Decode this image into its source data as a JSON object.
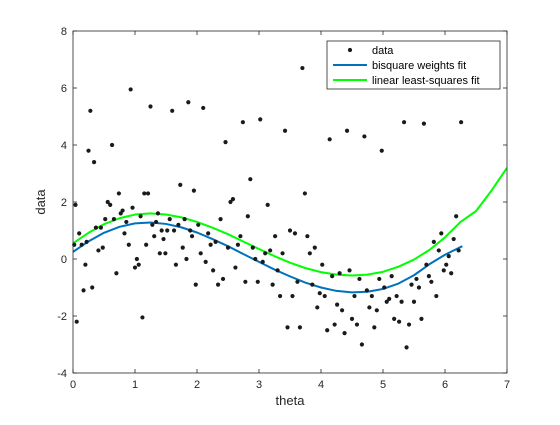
{
  "chart_data": {
    "type": "scatter",
    "xlabel": "theta",
    "ylabel": "data",
    "xlim": [
      0,
      7
    ],
    "ylim": [
      -4,
      8
    ],
    "xticks": [
      0,
      1,
      2,
      3,
      4,
      5,
      6,
      7
    ],
    "yticks": [
      -4,
      -2,
      0,
      2,
      4,
      6,
      8
    ],
    "grid": false,
    "legend_position": "top-right",
    "legend": [
      {
        "label": "data",
        "kind": "marker",
        "color": "#1a1a1a"
      },
      {
        "label": "bisquare weights fit",
        "kind": "line",
        "color": "#0072bd"
      },
      {
        "label": "linear least-squares fit",
        "kind": "line",
        "color": "#00ff00"
      }
    ],
    "series": [
      {
        "name": "data",
        "kind": "scatter",
        "color": "#1a1a1a",
        "points": [
          [
            0.02,
            0.5
          ],
          [
            0.04,
            1.9
          ],
          [
            0.06,
            -2.2
          ],
          [
            0.1,
            0.9
          ],
          [
            0.14,
            0.5
          ],
          [
            0.17,
            -1.1
          ],
          [
            0.2,
            -0.2
          ],
          [
            0.22,
            0.6
          ],
          [
            0.25,
            3.8
          ],
          [
            0.28,
            5.2
          ],
          [
            0.31,
            -1.0
          ],
          [
            0.34,
            3.4
          ],
          [
            0.37,
            1.1
          ],
          [
            0.41,
            0.3
          ],
          [
            0.45,
            1.1
          ],
          [
            0.48,
            0.4
          ],
          [
            0.52,
            1.4
          ],
          [
            0.56,
            2.0
          ],
          [
            0.6,
            1.9
          ],
          [
            0.63,
            4.0
          ],
          [
            0.66,
            1.4
          ],
          [
            0.7,
            -0.5
          ],
          [
            0.74,
            2.3
          ],
          [
            0.77,
            1.6
          ],
          [
            0.8,
            1.7
          ],
          [
            0.83,
            0.9
          ],
          [
            0.86,
            1.3
          ],
          [
            0.9,
            0.5
          ],
          [
            0.93,
            5.95
          ],
          [
            0.96,
            1.8
          ],
          [
            1.0,
            -0.3
          ],
          [
            1.03,
            0.0
          ],
          [
            1.06,
            -0.2
          ],
          [
            1.09,
            1.5
          ],
          [
            1.12,
            -2.05
          ],
          [
            1.15,
            2.3
          ],
          [
            1.18,
            0.5
          ],
          [
            1.21,
            2.3
          ],
          [
            1.25,
            5.35
          ],
          [
            1.28,
            1.2
          ],
          [
            1.31,
            0.8
          ],
          [
            1.34,
            1.3
          ],
          [
            1.37,
            1.6
          ],
          [
            1.4,
            0.2
          ],
          [
            1.43,
            1.0
          ],
          [
            1.46,
            0.7
          ],
          [
            1.49,
            0.2
          ],
          [
            1.52,
            1.0
          ],
          [
            1.56,
            1.4
          ],
          [
            1.6,
            5.2
          ],
          [
            1.63,
            1.0
          ],
          [
            1.66,
            -0.2
          ],
          [
            1.7,
            1.2
          ],
          [
            1.73,
            2.6
          ],
          [
            1.77,
            0.4
          ],
          [
            1.8,
            1.4
          ],
          [
            1.83,
            0.0
          ],
          [
            1.86,
            5.5
          ],
          [
            1.89,
            1.0
          ],
          [
            1.92,
            0.8
          ],
          [
            1.95,
            2.4
          ],
          [
            1.98,
            -0.9
          ],
          [
            2.02,
            1.2
          ],
          [
            2.06,
            0.2
          ],
          [
            2.1,
            5.3
          ],
          [
            2.14,
            -0.1
          ],
          [
            2.18,
            0.9
          ],
          [
            2.22,
            0.5
          ],
          [
            2.26,
            -0.4
          ],
          [
            2.3,
            0.6
          ],
          [
            2.34,
            -0.9
          ],
          [
            2.38,
            1.4
          ],
          [
            2.42,
            -0.7
          ],
          [
            2.46,
            4.1
          ],
          [
            2.5,
            0.4
          ],
          [
            2.54,
            2.0
          ],
          [
            2.58,
            2.1
          ],
          [
            2.62,
            -0.3
          ],
          [
            2.66,
            0.5
          ],
          [
            2.7,
            0.8
          ],
          [
            2.74,
            4.8
          ],
          [
            2.78,
            -0.8
          ],
          [
            2.82,
            1.5
          ],
          [
            2.86,
            2.8
          ],
          [
            2.9,
            0.4
          ],
          [
            2.94,
            0.0
          ],
          [
            2.98,
            -0.8
          ],
          [
            3.02,
            4.9
          ],
          [
            3.06,
            -0.1
          ],
          [
            3.1,
            0.2
          ],
          [
            3.14,
            1.9
          ],
          [
            3.18,
            0.3
          ],
          [
            3.22,
            -0.9
          ],
          [
            3.26,
            0.8
          ],
          [
            3.3,
            -0.4
          ],
          [
            3.34,
            -1.3
          ],
          [
            3.38,
            0.2
          ],
          [
            3.42,
            4.5
          ],
          [
            3.46,
            -2.4
          ],
          [
            3.5,
            1.0
          ],
          [
            3.54,
            -1.3
          ],
          [
            3.58,
            0.9
          ],
          [
            3.62,
            -0.8
          ],
          [
            3.66,
            -2.4
          ],
          [
            3.7,
            6.7
          ],
          [
            3.74,
            2.3
          ],
          [
            3.78,
            0.8
          ],
          [
            3.82,
            0.2
          ],
          [
            3.86,
            -0.9
          ],
          [
            3.9,
            0.4
          ],
          [
            3.94,
            -1.7
          ],
          [
            3.98,
            -1.2
          ],
          [
            4.02,
            -0.2
          ],
          [
            4.06,
            -1.3
          ],
          [
            4.1,
            -2.5
          ],
          [
            4.14,
            4.2
          ],
          [
            4.18,
            -0.6
          ],
          [
            4.22,
            -2.3
          ],
          [
            4.26,
            -1.6
          ],
          [
            4.3,
            -0.5
          ],
          [
            4.34,
            -1.8
          ],
          [
            4.38,
            -2.6
          ],
          [
            4.42,
            4.5
          ],
          [
            4.46,
            -0.4
          ],
          [
            4.5,
            -2.1
          ],
          [
            4.54,
            -1.3
          ],
          [
            4.58,
            -2.3
          ],
          [
            4.62,
            -0.7
          ],
          [
            4.66,
            -3.0
          ],
          [
            4.7,
            4.3
          ],
          [
            4.74,
            -1.1
          ],
          [
            4.78,
            -1.7
          ],
          [
            4.82,
            -1.3
          ],
          [
            4.86,
            -2.4
          ],
          [
            4.9,
            -1.8
          ],
          [
            4.94,
            -0.7
          ],
          [
            4.98,
            3.8
          ],
          [
            5.02,
            -1.0
          ],
          [
            5.06,
            -1.5
          ],
          [
            5.1,
            -1.4
          ],
          [
            5.14,
            -0.6
          ],
          [
            5.18,
            -2.1
          ],
          [
            5.22,
            -1.3
          ],
          [
            5.26,
            -2.2
          ],
          [
            5.3,
            -1.5
          ],
          [
            5.34,
            4.8
          ],
          [
            5.38,
            -3.1
          ],
          [
            5.42,
            -2.3
          ],
          [
            5.46,
            -0.9
          ],
          [
            5.5,
            -1.5
          ],
          [
            5.54,
            -0.7
          ],
          [
            5.58,
            -1.0
          ],
          [
            5.62,
            -2.1
          ],
          [
            5.66,
            4.75
          ],
          [
            5.7,
            -0.2
          ],
          [
            5.74,
            -0.6
          ],
          [
            5.78,
            -0.8
          ],
          [
            5.82,
            0.6
          ],
          [
            5.86,
            -1.3
          ],
          [
            5.9,
            0.3
          ],
          [
            5.94,
            0.9
          ],
          [
            5.98,
            -0.4
          ],
          [
            6.02,
            -0.2
          ],
          [
            6.06,
            0.1
          ],
          [
            6.1,
            -0.5
          ],
          [
            6.14,
            0.7
          ],
          [
            6.18,
            1.5
          ],
          [
            6.22,
            0.3
          ],
          [
            6.26,
            4.8
          ]
        ]
      },
      {
        "name": "bisquare weights fit",
        "kind": "line",
        "color": "#0072bd",
        "x": [
          0.0,
          0.25,
          0.5,
          0.75,
          1.0,
          1.25,
          1.5,
          1.75,
          2.0,
          2.25,
          2.5,
          2.75,
          3.0,
          3.25,
          3.5,
          3.75,
          4.0,
          4.25,
          4.5,
          4.75,
          5.0,
          5.25,
          5.5,
          5.75,
          6.0,
          6.28
        ],
        "y": [
          0.25,
          0.62,
          0.92,
          1.13,
          1.25,
          1.28,
          1.23,
          1.11,
          0.93,
          0.7,
          0.45,
          0.17,
          -0.1,
          -0.37,
          -0.61,
          -0.83,
          -1.0,
          -1.12,
          -1.17,
          -1.15,
          -1.05,
          -0.86,
          -0.57,
          -0.18,
          0.15,
          0.45
        ]
      },
      {
        "name": "linear least-squares fit",
        "kind": "line",
        "color": "#00ff00",
        "x": [
          0.0,
          0.25,
          0.5,
          0.75,
          1.0,
          1.25,
          1.5,
          1.75,
          2.0,
          2.25,
          2.5,
          2.75,
          3.0,
          3.25,
          3.5,
          3.75,
          4.0,
          4.25,
          4.5,
          4.75,
          5.0,
          5.25,
          5.5,
          5.75,
          6.0,
          6.25,
          6.5,
          6.75,
          7.0
        ],
        "y": [
          0.55,
          0.92,
          1.22,
          1.43,
          1.56,
          1.6,
          1.56,
          1.46,
          1.3,
          1.1,
          0.87,
          0.61,
          0.35,
          0.1,
          -0.13,
          -0.32,
          -0.46,
          -0.55,
          -0.58,
          -0.55,
          -0.45,
          -0.27,
          -0.02,
          0.32,
          0.76,
          1.3,
          1.68,
          2.4,
          3.2
        ]
      }
    ]
  }
}
